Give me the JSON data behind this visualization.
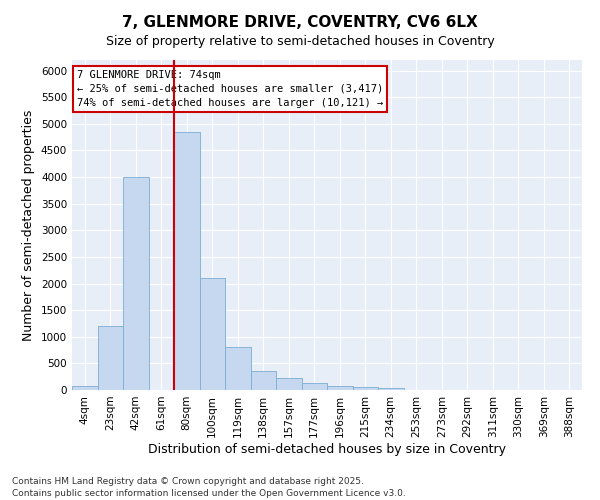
{
  "title_line1": "7, GLENMORE DRIVE, COVENTRY, CV6 6LX",
  "title_line2": "Size of property relative to semi-detached houses in Coventry",
  "xlabel": "Distribution of semi-detached houses by size in Coventry",
  "ylabel": "Number of semi-detached properties",
  "footnote": "Contains HM Land Registry data © Crown copyright and database right 2025.\nContains public sector information licensed under the Open Government Licence v3.0.",
  "categories": [
    "4sqm",
    "23sqm",
    "42sqm",
    "61sqm",
    "80sqm",
    "100sqm",
    "119sqm",
    "138sqm",
    "157sqm",
    "177sqm",
    "196sqm",
    "215sqm",
    "234sqm",
    "253sqm",
    "273sqm",
    "292sqm",
    "311sqm",
    "330sqm",
    "369sqm",
    "388sqm"
  ],
  "values": [
    70,
    1200,
    4000,
    0,
    4850,
    2100,
    800,
    350,
    230,
    130,
    70,
    50,
    30,
    0,
    0,
    0,
    0,
    0,
    0,
    0
  ],
  "bar_color": "#c5d8f0",
  "bar_edge_color": "#7aadd4",
  "red_line_index": 4,
  "annotation_title": "7 GLENMORE DRIVE: 74sqm",
  "annotation_line1": "← 25% of semi-detached houses are smaller (3,417)",
  "annotation_line2": "74% of semi-detached houses are larger (10,121) →",
  "annotation_box_color": "#ffffff",
  "annotation_box_edge": "#cc0000",
  "red_line_color": "#cc0000",
  "ylim": [
    0,
    6200
  ],
  "yticks": [
    0,
    500,
    1000,
    1500,
    2000,
    2500,
    3000,
    3500,
    4000,
    4500,
    5000,
    5500,
    6000
  ],
  "plot_bg_color": "#e8eef8",
  "grid_color": "#ffffff",
  "fig_bg_color": "#ffffff",
  "title_fontsize": 11,
  "subtitle_fontsize": 9,
  "axis_label_fontsize": 9,
  "tick_fontsize": 7.5,
  "footnote_fontsize": 6.5
}
